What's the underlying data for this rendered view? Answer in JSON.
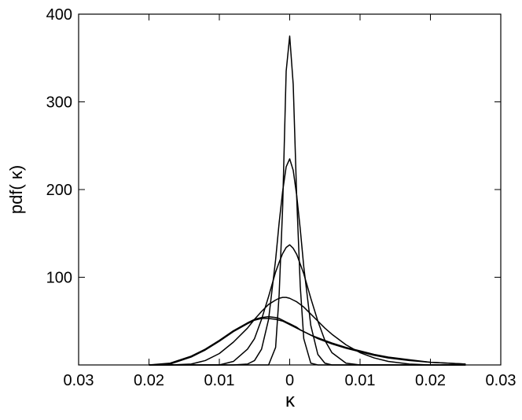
{
  "chart_data": {
    "type": "line",
    "xlabel": "κ",
    "ylabel": "pdf( κ)",
    "x": [
      -0.02,
      -0.017,
      -0.014,
      -0.012,
      -0.01,
      -0.008,
      -0.006,
      -0.005,
      -0.004,
      -0.003,
      -0.002,
      -0.0015,
      -0.001,
      -0.0005,
      0,
      0.0005,
      0.001,
      0.0015,
      0.002,
      0.003,
      0.004,
      0.005,
      0.006,
      0.008,
      0.01,
      0.012,
      0.014,
      0.017,
      0.02,
      0.025
    ],
    "series": [
      {
        "color": "#000000",
        "values": [
          0,
          0,
          0,
          0,
          0,
          0,
          0,
          0,
          0,
          0,
          20,
          80,
          180,
          335,
          375,
          320,
          190,
          90,
          30,
          2,
          0,
          0,
          0,
          0,
          0,
          0,
          0,
          0,
          0,
          0
        ]
      },
      {
        "color": "#000000",
        "values": [
          0,
          0,
          0,
          0,
          0,
          0,
          1,
          5,
          18,
          52,
          120,
          162,
          198,
          226,
          235,
          222,
          193,
          155,
          112,
          45,
          12,
          2,
          0,
          0,
          0,
          0,
          0,
          0,
          0,
          0
        ]
      },
      {
        "color": "#000000",
        "values": [
          0,
          0,
          0,
          0,
          0,
          4,
          18,
          30,
          52,
          78,
          106,
          117,
          127,
          134,
          137,
          133,
          126,
          115,
          104,
          76,
          50,
          28,
          14,
          2,
          0,
          0,
          0,
          0,
          0,
          0
        ]
      },
      {
        "color": "#000000",
        "values": [
          0,
          0,
          1,
          5,
          13,
          26,
          42,
          52,
          61,
          69,
          74,
          76,
          77,
          77,
          76,
          74,
          72,
          69,
          66,
          58,
          50,
          42,
          35,
          23,
          14,
          8,
          4,
          1,
          0,
          0
        ]
      },
      {
        "color": "#000000",
        "values": [
          0,
          2,
          10,
          18,
          28,
          39,
          48,
          52,
          54,
          55,
          54,
          53,
          51,
          49,
          47,
          45,
          43,
          40,
          38,
          34,
          30,
          27,
          24,
          19,
          15,
          11,
          8,
          5,
          3,
          1
        ]
      },
      {
        "color": "#000000",
        "values": [
          0,
          1,
          9,
          17,
          27,
          38,
          47,
          51,
          53,
          53,
          52,
          51,
          50,
          48,
          46,
          44,
          42,
          40,
          38,
          34,
          31,
          28,
          25,
          20,
          16,
          12,
          9,
          6,
          3,
          1
        ]
      }
    ],
    "xlim": [
      -0.03,
      0.03
    ],
    "xticks": [
      {
        "value": -0.03,
        "label": "0.03"
      },
      {
        "value": -0.02,
        "label": "0.02"
      },
      {
        "value": -0.01,
        "label": "0.01"
      },
      0,
      0.01,
      0.02,
      0.03
    ],
    "ylim": [
      0,
      400
    ],
    "yticks": [
      100,
      200,
      300,
      400
    ]
  }
}
